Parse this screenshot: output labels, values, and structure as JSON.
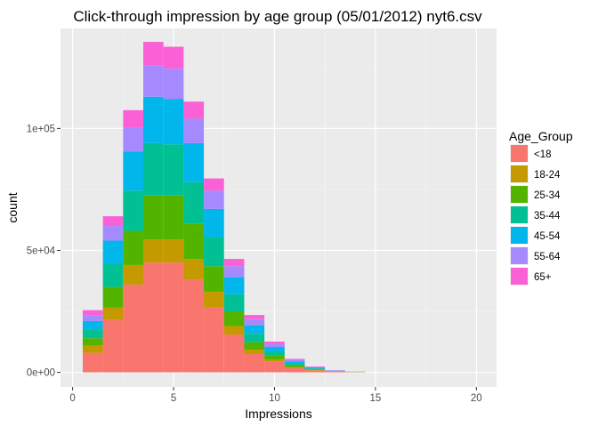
{
  "chart_data": {
    "type": "bar",
    "stacked": true,
    "title": "Click-through impression by age group (05/01/2012) nyt6.csv",
    "xlabel": "Impressions",
    "ylabel": "count",
    "x_ticks": [
      0,
      5,
      10,
      15,
      20
    ],
    "x_tick_labels": [
      "0",
      "5",
      "10",
      "15",
      "20"
    ],
    "y_ticks": [
      0,
      50000,
      100000
    ],
    "y_tick_labels": [
      "0e+00",
      "5e+04",
      "1e+05"
    ],
    "xlim": [
      -0.6,
      21.0
    ],
    "ylim": [
      -6000,
      141000
    ],
    "grid": true,
    "legend_position": "right",
    "legend_title": "Age_Group",
    "x": [
      1,
      2,
      3,
      4,
      5,
      6,
      7,
      8,
      9,
      10,
      11,
      12,
      13,
      14
    ],
    "series": [
      {
        "name": "<18",
        "color": "#F8766D",
        "values": [
          8000,
          21500,
          36000,
          45000,
          45000,
          38000,
          26500,
          15500,
          7500,
          4300,
          1800,
          800,
          300,
          100
        ]
      },
      {
        "name": "18-24",
        "color": "#C49A00",
        "values": [
          3000,
          5000,
          8000,
          9500,
          9500,
          8500,
          6500,
          3500,
          1800,
          900,
          400,
          150,
          60,
          20
        ]
      },
      {
        "name": "25-34",
        "color": "#53B400",
        "values": [
          3000,
          8500,
          14000,
          18000,
          18000,
          14500,
          10500,
          6000,
          3000,
          1600,
          700,
          300,
          100,
          40
        ]
      },
      {
        "name": "35-44",
        "color": "#00C094",
        "values": [
          3500,
          9500,
          16500,
          21500,
          21000,
          17000,
          12000,
          7000,
          3500,
          1800,
          800,
          350,
          120,
          50
        ]
      },
      {
        "name": "45-54",
        "color": "#00B6EB",
        "values": [
          3500,
          9500,
          16000,
          19000,
          18500,
          16000,
          11500,
          7000,
          3500,
          1800,
          800,
          350,
          120,
          50
        ]
      },
      {
        "name": "55-64",
        "color": "#A58AFF",
        "values": [
          2500,
          6000,
          10000,
          13000,
          12500,
          10000,
          7500,
          4500,
          2500,
          1300,
          600,
          250,
          90,
          40
        ]
      },
      {
        "name": "65+",
        "color": "#FB61D7",
        "values": [
          2000,
          4000,
          7000,
          9500,
          9000,
          7000,
          5000,
          3000,
          1700,
          900,
          400,
          200,
          70,
          30
        ]
      }
    ]
  }
}
